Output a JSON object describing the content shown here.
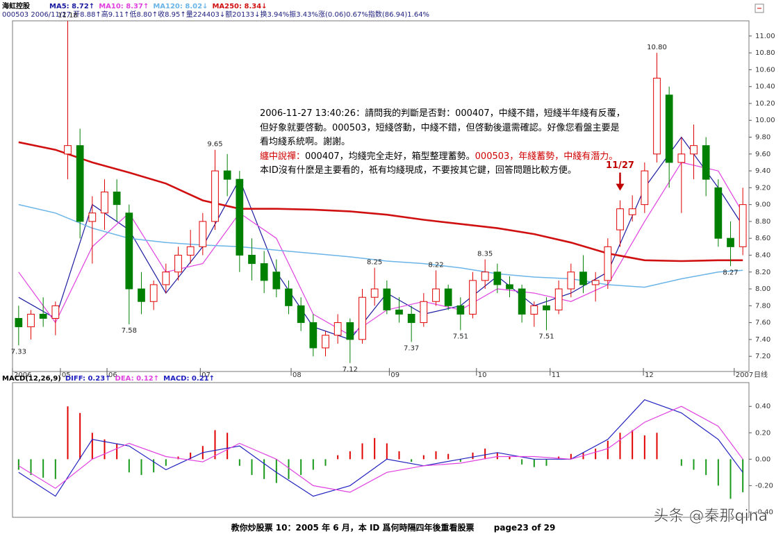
{
  "chart_data": [
    {
      "type": "candlestick",
      "title": "海虹控股",
      "subtitle": "000503 2006/11/27 开8.88↑高9.11↑低8.80↑收8.95↑量224403↓额20133↓换3.94%振3.43%涨(0.06)0.67%指数(86.94)1.64%",
      "x_label": "日线",
      "xlim": [
        0,
        60
      ],
      "xticks": [
        {
          "value": 0,
          "label": "2006"
        },
        {
          "value": 3.9,
          "label": "05"
        },
        {
          "value": 7.7,
          "label": "06"
        },
        {
          "value": 15.3,
          "label": "07"
        },
        {
          "value": 22.7,
          "label": "08"
        },
        {
          "value": 30.7,
          "label": "09"
        },
        {
          "value": 37.8,
          "label": "10"
        },
        {
          "value": 43.8,
          "label": "11"
        },
        {
          "value": 51.4,
          "label": "12"
        },
        {
          "value": 58.8,
          "label": "2007"
        }
      ],
      "ylim": [
        7.02,
        11.18
      ],
      "yticks": [
        {
          "value": 7.2,
          "label": "7.20"
        },
        {
          "value": 7.4,
          "label": "7.40"
        },
        {
          "value": 7.6,
          "label": "7.60"
        },
        {
          "value": 7.8,
          "label": "7.80"
        },
        {
          "value": 8.0,
          "label": "8.00"
        },
        {
          "value": 8.2,
          "label": "8.20"
        },
        {
          "value": 8.4,
          "label": "8.40"
        },
        {
          "value": 8.6,
          "label": "8.60"
        },
        {
          "value": 8.8,
          "label": "8.80"
        },
        {
          "value": 9.0,
          "label": "9.00"
        },
        {
          "value": 9.2,
          "label": "9.20"
        },
        {
          "value": 9.4,
          "label": "9.40"
        },
        {
          "value": 9.6,
          "label": "9.60"
        },
        {
          "value": 9.8,
          "label": "9.80"
        },
        {
          "value": 10.0,
          "label": "10.00"
        },
        {
          "value": 10.2,
          "label": "10.20"
        },
        {
          "value": 10.4,
          "label": "10.40"
        },
        {
          "value": 10.6,
          "label": "10.60"
        },
        {
          "value": 10.8,
          "label": "10.80"
        },
        {
          "value": 11.0,
          "label": "11.00"
        }
      ],
      "up_color": "#e00000",
      "down_color": "#008000",
      "open": [
        7.65,
        7.55,
        7.7,
        7.65,
        9.6,
        9.7,
        8.8,
        8.9,
        9.15,
        8.9,
        8.0,
        7.85,
        8.05,
        8.2,
        8.4,
        8.5,
        8.8,
        9.4,
        9.3,
        8.4,
        8.3,
        8.2,
        8.0,
        7.8,
        7.6,
        7.3,
        7.45,
        7.6,
        7.4,
        7.9,
        8.0,
        7.75,
        7.7,
        7.6,
        7.85,
        8.0,
        7.8,
        7.7,
        8.1,
        8.2,
        8.05,
        8.0,
        7.7,
        7.8,
        7.75,
        8.0,
        8.2,
        8.05,
        8.1,
        8.7,
        8.88,
        9.0,
        9.6,
        10.3,
        9.5,
        9.6,
        9.7,
        9.2,
        8.6,
        8.5
      ],
      "high": [
        7.8,
        7.75,
        7.9,
        7.85,
        11.18,
        9.9,
        9.1,
        9.3,
        9.3,
        9.0,
        8.2,
        8.1,
        8.3,
        8.5,
        8.7,
        8.9,
        9.65,
        9.6,
        9.4,
        8.6,
        8.45,
        8.35,
        8.1,
        7.9,
        7.7,
        7.5,
        7.7,
        7.65,
        8.0,
        8.25,
        8.1,
        7.9,
        7.8,
        7.95,
        8.22,
        8.05,
        7.9,
        8.2,
        8.35,
        8.3,
        8.15,
        8.05,
        7.85,
        7.9,
        8.1,
        8.3,
        8.4,
        8.2,
        8.6,
        9.05,
        9.11,
        9.5,
        10.8,
        10.4,
        9.8,
        9.95,
        9.8,
        9.3,
        8.8,
        9.2
      ],
      "low": [
        7.33,
        7.4,
        7.55,
        7.45,
        9.3,
        8.6,
        8.3,
        8.7,
        8.8,
        7.58,
        7.7,
        7.75,
        7.95,
        8.1,
        8.3,
        8.4,
        8.7,
        9.1,
        8.2,
        8.1,
        7.95,
        7.9,
        7.7,
        7.5,
        7.2,
        7.2,
        7.35,
        7.12,
        7.35,
        7.8,
        7.7,
        7.6,
        7.37,
        7.55,
        7.8,
        7.75,
        7.51,
        7.65,
        8.0,
        7.95,
        7.9,
        7.6,
        7.55,
        7.51,
        7.7,
        7.9,
        7.95,
        7.85,
        8.0,
        8.5,
        8.8,
        8.9,
        9.5,
        9.2,
        8.9,
        9.3,
        9.1,
        8.5,
        8.27,
        8.4
      ],
      "close": [
        7.55,
        7.7,
        7.65,
        7.8,
        9.7,
        8.8,
        8.9,
        9.15,
        9.0,
        8.0,
        7.85,
        8.05,
        8.2,
        8.4,
        8.5,
        8.8,
        9.4,
        9.3,
        8.4,
        8.3,
        8.1,
        8.0,
        7.8,
        7.6,
        7.3,
        7.45,
        7.6,
        7.4,
        7.9,
        8.0,
        7.75,
        7.7,
        7.6,
        7.85,
        8.0,
        7.8,
        7.7,
        8.1,
        8.2,
        8.05,
        8.0,
        7.7,
        7.8,
        7.75,
        8.0,
        8.2,
        8.05,
        8.1,
        8.5,
        8.95,
        8.95,
        9.4,
        10.5,
        9.5,
        9.6,
        9.7,
        9.3,
        8.6,
        8.5,
        9.0
      ],
      "series": [
        {
          "name": "MA5: 8.72↑",
          "color": "#1a1aa0",
          "width": 1.2,
          "x": [
            0,
            3,
            6,
            9,
            12,
            15,
            18,
            21,
            24,
            27,
            30,
            33,
            36,
            39,
            42,
            45,
            48,
            51,
            54,
            57,
            59
          ],
          "values": [
            7.9,
            7.65,
            9.0,
            8.7,
            7.95,
            8.5,
            9.3,
            8.2,
            7.55,
            7.4,
            7.95,
            7.7,
            7.8,
            8.15,
            7.8,
            7.95,
            8.2,
            9.2,
            9.8,
            9.2,
            8.75
          ]
        },
        {
          "name": "MA10: 8.37↑",
          "color": "#e040e0",
          "width": 1.2,
          "x": [
            0,
            3,
            6,
            9,
            12,
            15,
            18,
            21,
            24,
            27,
            30,
            33,
            36,
            39,
            42,
            45,
            48,
            51,
            54,
            57,
            59
          ],
          "values": [
            8.2,
            7.6,
            8.5,
            8.9,
            8.2,
            8.3,
            8.9,
            8.6,
            7.7,
            7.45,
            7.75,
            7.85,
            7.75,
            8.0,
            7.95,
            7.85,
            8.05,
            8.8,
            9.5,
            9.4,
            8.9
          ]
        },
        {
          "name": "MA120: 8.02↓",
          "color": "#6ab4e8",
          "width": 1.5,
          "x": [
            0,
            3,
            6,
            9,
            12,
            15,
            18,
            21,
            24,
            27,
            30,
            33,
            36,
            39,
            42,
            45,
            48,
            51,
            54,
            57,
            59
          ],
          "values": [
            9.0,
            8.9,
            8.72,
            8.6,
            8.55,
            8.52,
            8.5,
            8.46,
            8.42,
            8.38,
            8.33,
            8.3,
            8.25,
            8.18,
            8.14,
            8.12,
            8.05,
            8.02,
            8.12,
            8.2,
            8.22
          ]
        },
        {
          "name": "MA250: 8.34↓",
          "color": "#d01010",
          "width": 2.6,
          "x": [
            0,
            3,
            6,
            9,
            12,
            15,
            18,
            21,
            24,
            27,
            30,
            33,
            36,
            39,
            42,
            45,
            48,
            51,
            54,
            57,
            59
          ],
          "values": [
            9.74,
            9.65,
            9.5,
            9.38,
            9.25,
            9.05,
            8.95,
            8.95,
            8.94,
            8.92,
            8.88,
            8.82,
            8.77,
            8.72,
            8.65,
            8.55,
            8.42,
            8.34,
            8.33,
            8.34,
            8.34
          ]
        }
      ],
      "price_labels": [
        {
          "x": 4.5,
          "value": 11.18
        },
        {
          "x": 0.5,
          "value": 7.33
        },
        {
          "x": 9.5,
          "value": 7.58
        },
        {
          "x": 16.5,
          "value": 9.65
        },
        {
          "x": 27.5,
          "value": 7.12
        },
        {
          "x": 29.5,
          "value": 8.25
        },
        {
          "x": 32.5,
          "value": 7.37
        },
        {
          "x": 34.5,
          "value": 8.22
        },
        {
          "x": 36.5,
          "value": 7.51
        },
        {
          "x": 38.5,
          "value": 8.35
        },
        {
          "x": 43.5,
          "value": 7.51
        },
        {
          "x": 52.5,
          "value": 10.8,
          "label": "10.80"
        },
        {
          "x": 58.5,
          "value": 8.27
        }
      ],
      "marker": {
        "label": "11/27",
        "x": 49.5,
        "color": "#c00000"
      }
    },
    {
      "type": "macd",
      "title": "MACD(12,26,9)",
      "xlim": [
        0,
        60
      ],
      "ylim": [
        -0.44,
        0.58
      ],
      "yticks": [
        {
          "value": -0.4,
          "label": "-0.40"
        },
        {
          "value": -0.2,
          "label": "-0.20"
        },
        {
          "value": 0,
          "label": "0.00"
        },
        {
          "value": 0.2,
          "label": "0.20"
        },
        {
          "value": 0.4,
          "label": "0.40"
        }
      ],
      "up_color": "#e00000",
      "down_color": "#1a9a1a",
      "values": [
        -0.08,
        -0.12,
        -0.14,
        -0.15,
        0.4,
        0.35,
        0.2,
        0.15,
        0.12,
        -0.1,
        -0.12,
        -0.1,
        -0.05,
        0.02,
        0.05,
        0.1,
        0.22,
        0.2,
        -0.05,
        -0.12,
        -0.15,
        -0.18,
        -0.15,
        -0.12,
        -0.08,
        -0.05,
        0.03,
        0.06,
        0.12,
        0.16,
        0.12,
        0.06,
        -0.02,
        0.03,
        0.06,
        0.04,
        -0.02,
        0.05,
        0.08,
        0.05,
        0.02,
        -0.04,
        -0.06,
        -0.05,
        0.02,
        0.04,
        0.05,
        0.08,
        0.14,
        0.2,
        0.22,
        0.18,
        0.2,
        0.0,
        -0.05,
        -0.08,
        -0.12,
        -0.2,
        -0.3,
        -0.25
      ],
      "legend_label": "MACD: 0.21↑",
      "series": [
        {
          "name": "DIFF: 0.23↑",
          "color": "#2020c0",
          "width": 1.2,
          "x": [
            0,
            3,
            6,
            9,
            12,
            15,
            18,
            21,
            24,
            27,
            30,
            33,
            36,
            39,
            42,
            45,
            48,
            51,
            54,
            57,
            59
          ],
          "values": [
            -0.1,
            -0.28,
            0.15,
            0.1,
            -0.08,
            0.05,
            0.1,
            -0.1,
            -0.28,
            -0.2,
            0.0,
            -0.05,
            0.0,
            0.05,
            0.0,
            0.0,
            0.15,
            0.45,
            0.35,
            0.15,
            -0.1
          ]
        },
        {
          "name": "DEA: 0.12↑",
          "color": "#e040e0",
          "width": 1.2,
          "x": [
            0,
            3,
            6,
            9,
            12,
            15,
            18,
            21,
            24,
            27,
            30,
            33,
            36,
            39,
            42,
            45,
            48,
            51,
            54,
            57,
            59
          ],
          "values": [
            -0.05,
            -0.22,
            0.0,
            0.12,
            0.02,
            -0.02,
            0.12,
            0.0,
            -0.2,
            -0.25,
            -0.1,
            -0.05,
            -0.03,
            0.02,
            0.02,
            0.0,
            0.08,
            0.28,
            0.4,
            0.25,
            0.0
          ]
        }
      ]
    }
  ],
  "comment": [
    [
      {
        "text": "2006-11-27 13:40:26：請問我的判斷是否對：000407，中綫不錯，短綫半年綫有反覆，",
        "color": "#000000"
      }
    ],
    [
      {
        "text": "但好象就要啓動。000503，短綫啓動，中綫不錯，但啓動後還需確認。好像您看盤主要是",
        "color": "#000000"
      }
    ],
    [
      {
        "text": "看均綫系統啊。謝謝。",
        "color": "#000000"
      }
    ],
    [
      {
        "text": "纏中說禪：",
        "color": "#d00000"
      },
      {
        "text": "000407，均綫完全走好，箱型整理蓄勢。",
        "color": "#000000"
      },
      {
        "text": "000503，年綫蓄勢，中綫有潛力。",
        "color": "#d00000"
      }
    ],
    [
      {
        "text": "本ID沒有什麼是主要看的，祇有均綫現成，不要按其它鍵，回答問題比較方便。",
        "color": "#000000"
      }
    ]
  ],
  "footer": {
    "caption": "教你炒股票 10：2005 年 6 月，本 ID 爲何時隔四年後重看股票",
    "page": "page23 of 29"
  },
  "watermark": "头条 @秦那qina"
}
